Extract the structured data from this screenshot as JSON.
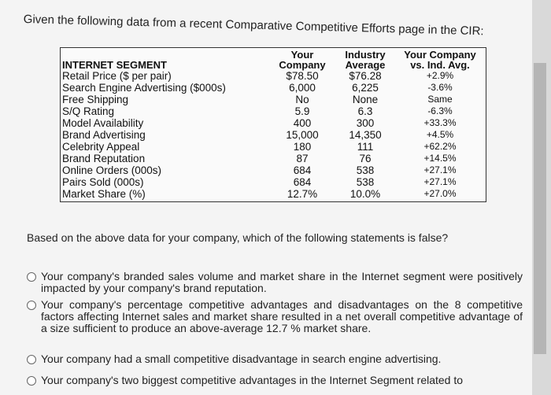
{
  "header": {
    "title": "Given the following data from a recent Comparative Competitive Efforts page in the CIR:"
  },
  "table": {
    "columns": [
      "INTERNET SEGMENT",
      "Your Company",
      "Industry Average",
      "Your Company vs. Ind. Avg."
    ],
    "rows": [
      [
        "Retail Price ($ per pair)",
        "$78.50",
        "$76.28",
        "+2.9%"
      ],
      [
        "Search Engine Advertising ($000s)",
        "6,000",
        "6,225",
        "-3.6%"
      ],
      [
        "Free Shipping",
        "No",
        "None",
        "Same"
      ],
      [
        "S/Q Rating",
        "5.9",
        "6.3",
        "-6.3%"
      ],
      [
        "Model Availability",
        "400",
        "300",
        "+33.3%"
      ],
      [
        "Brand Advertising",
        "15,000",
        "14,350",
        "+4.5%"
      ],
      [
        "Celebrity Appeal",
        "180",
        "111",
        "+62.2%"
      ],
      [
        "Brand Reputation",
        "87",
        "76",
        "+14.5%"
      ],
      [
        "Online Orders (000s)",
        "684",
        "538",
        "+27.1%"
      ],
      [
        "Pairs Sold (000s)",
        "684",
        "538",
        "+27.1%"
      ],
      [
        "Market Share (%)",
        "12.7%",
        "10.0%",
        "+27.0%"
      ]
    ]
  },
  "question": "Based on the above data for your company, which of the following statements is false?",
  "options": [
    "Your company's branded sales volume and market share in the Internet segment were positively impacted by your company's brand reputation.",
    "Your company's percentage competitive advantages and disadvantages on the 8 competitive factors affecting Internet sales and market share resulted in a net overall competitive advantage of a size sufficient to produce an above-average 12.7 % market share.",
    "Your company had a small competitive disadvantage in search engine advertising.",
    "Your company's two biggest competitive advantages in the Internet Segment related to"
  ]
}
